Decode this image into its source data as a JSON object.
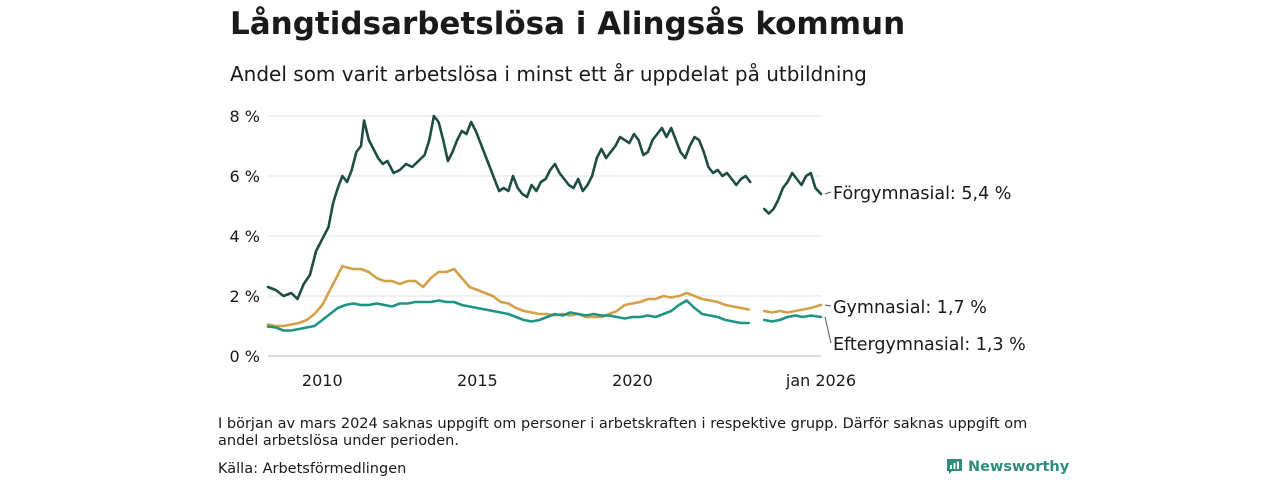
{
  "header": {
    "title": "Långtidsarbetslösa i Alingsås kommun",
    "subtitle": "Andel som varit arbetslösa i minst ett år uppdelat på utbildning"
  },
  "footer": {
    "note": "I början av mars 2024 saknas uppgift om personer i arbetskraften i respektive grupp. Därför saknas uppgift om andel arbetslösa under perioden.",
    "source": "Källa: Arbetsförmedlingen",
    "brand": "Newsworthy"
  },
  "chart_data": {
    "type": "line",
    "title": "Långtidsarbetslösa i Alingsås kommun",
    "xlabel": "",
    "ylabel": "",
    "xlim": [
      2008.25,
      2026.08
    ],
    "ylim": [
      0,
      8
    ],
    "grid": true,
    "y_ticks": [
      0,
      2,
      4,
      6,
      8
    ],
    "y_tick_labels": [
      "0 %",
      "2 %",
      "4 %",
      "6 %",
      "8 %"
    ],
    "x_ticks": [
      2010,
      2015,
      2020,
      2026.08
    ],
    "x_tick_labels": [
      "2010",
      "2015",
      "2020",
      "jan 2026"
    ],
    "gap_note": "No data around March 2024",
    "series": [
      {
        "name": "Förgymnasial",
        "end_label": "Förgymnasial: 5,4 %",
        "color": "#1e4d43",
        "segments": [
          [
            [
              2008.25,
              2.3
            ],
            [
              2008.5,
              2.2
            ],
            [
              2008.75,
              2.0
            ],
            [
              2009.0,
              2.1
            ],
            [
              2009.2,
              1.9
            ],
            [
              2009.4,
              2.4
            ],
            [
              2009.6,
              2.7
            ],
            [
              2009.8,
              3.5
            ],
            [
              2010.0,
              3.9
            ],
            [
              2010.2,
              4.3
            ],
            [
              2010.35,
              5.1
            ],
            [
              2010.5,
              5.6
            ],
            [
              2010.65,
              6.0
            ],
            [
              2010.8,
              5.8
            ],
            [
              2010.95,
              6.2
            ],
            [
              2011.1,
              6.8
            ],
            [
              2011.25,
              7.0
            ],
            [
              2011.35,
              7.85
            ],
            [
              2011.5,
              7.2
            ],
            [
              2011.65,
              6.9
            ],
            [
              2011.8,
              6.6
            ],
            [
              2011.95,
              6.4
            ],
            [
              2012.1,
              6.5
            ],
            [
              2012.3,
              6.1
            ],
            [
              2012.5,
              6.2
            ],
            [
              2012.7,
              6.4
            ],
            [
              2012.9,
              6.3
            ],
            [
              2013.1,
              6.5
            ],
            [
              2013.3,
              6.7
            ],
            [
              2013.45,
              7.2
            ],
            [
              2013.6,
              8.0
            ],
            [
              2013.75,
              7.8
            ],
            [
              2013.9,
              7.2
            ],
            [
              2014.05,
              6.5
            ],
            [
              2014.2,
              6.8
            ],
            [
              2014.35,
              7.2
            ],
            [
              2014.5,
              7.5
            ],
            [
              2014.65,
              7.4
            ],
            [
              2014.8,
              7.8
            ],
            [
              2014.95,
              7.5
            ],
            [
              2015.1,
              7.1
            ],
            [
              2015.25,
              6.7
            ],
            [
              2015.4,
              6.3
            ],
            [
              2015.55,
              5.9
            ],
            [
              2015.7,
              5.5
            ],
            [
              2015.85,
              5.6
            ],
            [
              2016.0,
              5.5
            ],
            [
              2016.15,
              6.0
            ],
            [
              2016.3,
              5.6
            ],
            [
              2016.45,
              5.4
            ],
            [
              2016.6,
              5.3
            ],
            [
              2016.75,
              5.7
            ],
            [
              2016.9,
              5.5
            ],
            [
              2017.05,
              5.8
            ],
            [
              2017.2,
              5.9
            ],
            [
              2017.35,
              6.2
            ],
            [
              2017.5,
              6.4
            ],
            [
              2017.65,
              6.1
            ],
            [
              2017.8,
              5.9
            ],
            [
              2017.95,
              5.7
            ],
            [
              2018.1,
              5.6
            ],
            [
              2018.25,
              5.9
            ],
            [
              2018.4,
              5.5
            ],
            [
              2018.55,
              5.7
            ],
            [
              2018.7,
              6.0
            ],
            [
              2018.85,
              6.6
            ],
            [
              2019.0,
              6.9
            ],
            [
              2019.15,
              6.6
            ],
            [
              2019.3,
              6.8
            ],
            [
              2019.45,
              7.0
            ],
            [
              2019.6,
              7.3
            ],
            [
              2019.75,
              7.2
            ],
            [
              2019.9,
              7.1
            ],
            [
              2020.05,
              7.4
            ],
            [
              2020.2,
              7.2
            ],
            [
              2020.35,
              6.7
            ],
            [
              2020.5,
              6.8
            ],
            [
              2020.65,
              7.2
            ],
            [
              2020.8,
              7.4
            ],
            [
              2020.95,
              7.6
            ],
            [
              2021.1,
              7.3
            ],
            [
              2021.25,
              7.6
            ],
            [
              2021.4,
              7.2
            ],
            [
              2021.55,
              6.8
            ],
            [
              2021.7,
              6.6
            ],
            [
              2021.85,
              7.0
            ],
            [
              2022.0,
              7.3
            ],
            [
              2022.15,
              7.2
            ],
            [
              2022.3,
              6.8
            ],
            [
              2022.45,
              6.3
            ],
            [
              2022.6,
              6.1
            ],
            [
              2022.75,
              6.2
            ],
            [
              2022.9,
              6.0
            ],
            [
              2023.05,
              6.1
            ],
            [
              2023.2,
              5.9
            ],
            [
              2023.35,
              5.7
            ],
            [
              2023.5,
              5.9
            ],
            [
              2023.65,
              6.0
            ],
            [
              2023.8,
              5.8
            ]
          ],
          [
            [
              2024.25,
              4.9
            ],
            [
              2024.4,
              4.75
            ],
            [
              2024.55,
              4.9
            ],
            [
              2024.7,
              5.2
            ],
            [
              2024.85,
              5.6
            ],
            [
              2025.0,
              5.8
            ],
            [
              2025.15,
              6.1
            ],
            [
              2025.3,
              5.9
            ],
            [
              2025.45,
              5.7
            ],
            [
              2025.6,
              6.0
            ],
            [
              2025.75,
              6.1
            ],
            [
              2025.9,
              5.6
            ],
            [
              2026.08,
              5.4
            ]
          ]
        ]
      },
      {
        "name": "Gymnasial",
        "end_label": "Gymnasial: 1,7 %",
        "color": "#d4a04a",
        "segments": [
          [
            [
              2008.25,
              1.05
            ],
            [
              2008.5,
              1.0
            ],
            [
              2008.75,
              1.0
            ],
            [
              2009.0,
              1.05
            ],
            [
              2009.25,
              1.1
            ],
            [
              2009.5,
              1.2
            ],
            [
              2009.75,
              1.4
            ],
            [
              2010.0,
              1.7
            ],
            [
              2010.25,
              2.2
            ],
            [
              2010.5,
              2.7
            ],
            [
              2010.65,
              3.0
            ],
            [
              2010.8,
              2.95
            ],
            [
              2011.0,
              2.9
            ],
            [
              2011.25,
              2.9
            ],
            [
              2011.5,
              2.8
            ],
            [
              2011.75,
              2.6
            ],
            [
              2012.0,
              2.5
            ],
            [
              2012.25,
              2.5
            ],
            [
              2012.5,
              2.4
            ],
            [
              2012.75,
              2.5
            ],
            [
              2013.0,
              2.5
            ],
            [
              2013.25,
              2.3
            ],
            [
              2013.5,
              2.6
            ],
            [
              2013.75,
              2.8
            ],
            [
              2014.0,
              2.8
            ],
            [
              2014.25,
              2.9
            ],
            [
              2014.5,
              2.6
            ],
            [
              2014.75,
              2.3
            ],
            [
              2015.0,
              2.2
            ],
            [
              2015.25,
              2.1
            ],
            [
              2015.5,
              2.0
            ],
            [
              2015.75,
              1.8
            ],
            [
              2016.0,
              1.75
            ],
            [
              2016.25,
              1.6
            ],
            [
              2016.5,
              1.5
            ],
            [
              2016.75,
              1.45
            ],
            [
              2017.0,
              1.4
            ],
            [
              2017.25,
              1.4
            ],
            [
              2017.5,
              1.35
            ],
            [
              2017.75,
              1.4
            ],
            [
              2018.0,
              1.35
            ],
            [
              2018.25,
              1.4
            ],
            [
              2018.5,
              1.3
            ],
            [
              2018.75,
              1.3
            ],
            [
              2019.0,
              1.3
            ],
            [
              2019.25,
              1.4
            ],
            [
              2019.5,
              1.5
            ],
            [
              2019.75,
              1.7
            ],
            [
              2020.0,
              1.75
            ],
            [
              2020.25,
              1.8
            ],
            [
              2020.5,
              1.9
            ],
            [
              2020.75,
              1.9
            ],
            [
              2021.0,
              2.0
            ],
            [
              2021.25,
              1.95
            ],
            [
              2021.5,
              2.0
            ],
            [
              2021.75,
              2.1
            ],
            [
              2022.0,
              2.0
            ],
            [
              2022.25,
              1.9
            ],
            [
              2022.5,
              1.85
            ],
            [
              2022.75,
              1.8
            ],
            [
              2023.0,
              1.7
            ],
            [
              2023.25,
              1.65
            ],
            [
              2023.5,
              1.6
            ],
            [
              2023.75,
              1.55
            ]
          ],
          [
            [
              2024.25,
              1.5
            ],
            [
              2024.5,
              1.45
            ],
            [
              2024.75,
              1.5
            ],
            [
              2025.0,
              1.45
            ],
            [
              2025.25,
              1.5
            ],
            [
              2025.5,
              1.55
            ],
            [
              2025.75,
              1.6
            ],
            [
              2026.08,
              1.7
            ]
          ]
        ]
      },
      {
        "name": "Eftergymnasial",
        "end_label": "Eftergymnasial: 1,3 %",
        "color": "#1f9484",
        "segments": [
          [
            [
              2008.25,
              0.98
            ],
            [
              2008.5,
              0.95
            ],
            [
              2008.75,
              0.85
            ],
            [
              2009.0,
              0.85
            ],
            [
              2009.25,
              0.9
            ],
            [
              2009.5,
              0.95
            ],
            [
              2009.75,
              1.0
            ],
            [
              2010.0,
              1.2
            ],
            [
              2010.25,
              1.4
            ],
            [
              2010.5,
              1.6
            ],
            [
              2010.75,
              1.7
            ],
            [
              2011.0,
              1.75
            ],
            [
              2011.25,
              1.7
            ],
            [
              2011.5,
              1.7
            ],
            [
              2011.75,
              1.75
            ],
            [
              2012.0,
              1.7
            ],
            [
              2012.25,
              1.65
            ],
            [
              2012.5,
              1.75
            ],
            [
              2012.75,
              1.75
            ],
            [
              2013.0,
              1.8
            ],
            [
              2013.25,
              1.8
            ],
            [
              2013.5,
              1.8
            ],
            [
              2013.75,
              1.85
            ],
            [
              2014.0,
              1.8
            ],
            [
              2014.25,
              1.8
            ],
            [
              2014.5,
              1.7
            ],
            [
              2014.75,
              1.65
            ],
            [
              2015.0,
              1.6
            ],
            [
              2015.25,
              1.55
            ],
            [
              2015.5,
              1.5
            ],
            [
              2015.75,
              1.45
            ],
            [
              2016.0,
              1.4
            ],
            [
              2016.25,
              1.3
            ],
            [
              2016.5,
              1.2
            ],
            [
              2016.75,
              1.15
            ],
            [
              2017.0,
              1.2
            ],
            [
              2017.25,
              1.3
            ],
            [
              2017.5,
              1.4
            ],
            [
              2017.75,
              1.35
            ],
            [
              2018.0,
              1.45
            ],
            [
              2018.25,
              1.4
            ],
            [
              2018.5,
              1.35
            ],
            [
              2018.75,
              1.4
            ],
            [
              2019.0,
              1.35
            ],
            [
              2019.25,
              1.35
            ],
            [
              2019.5,
              1.3
            ],
            [
              2019.75,
              1.25
            ],
            [
              2020.0,
              1.3
            ],
            [
              2020.25,
              1.3
            ],
            [
              2020.5,
              1.35
            ],
            [
              2020.75,
              1.3
            ],
            [
              2021.0,
              1.4
            ],
            [
              2021.25,
              1.5
            ],
            [
              2021.5,
              1.7
            ],
            [
              2021.75,
              1.85
            ],
            [
              2022.0,
              1.6
            ],
            [
              2022.25,
              1.4
            ],
            [
              2022.5,
              1.35
            ],
            [
              2022.75,
              1.3
            ],
            [
              2023.0,
              1.2
            ],
            [
              2023.25,
              1.15
            ],
            [
              2023.5,
              1.1
            ],
            [
              2023.75,
              1.1
            ]
          ],
          [
            [
              2024.25,
              1.2
            ],
            [
              2024.5,
              1.15
            ],
            [
              2024.75,
              1.2
            ],
            [
              2025.0,
              1.3
            ],
            [
              2025.25,
              1.35
            ],
            [
              2025.5,
              1.3
            ],
            [
              2025.75,
              1.35
            ],
            [
              2026.08,
              1.3
            ]
          ]
        ]
      }
    ]
  }
}
